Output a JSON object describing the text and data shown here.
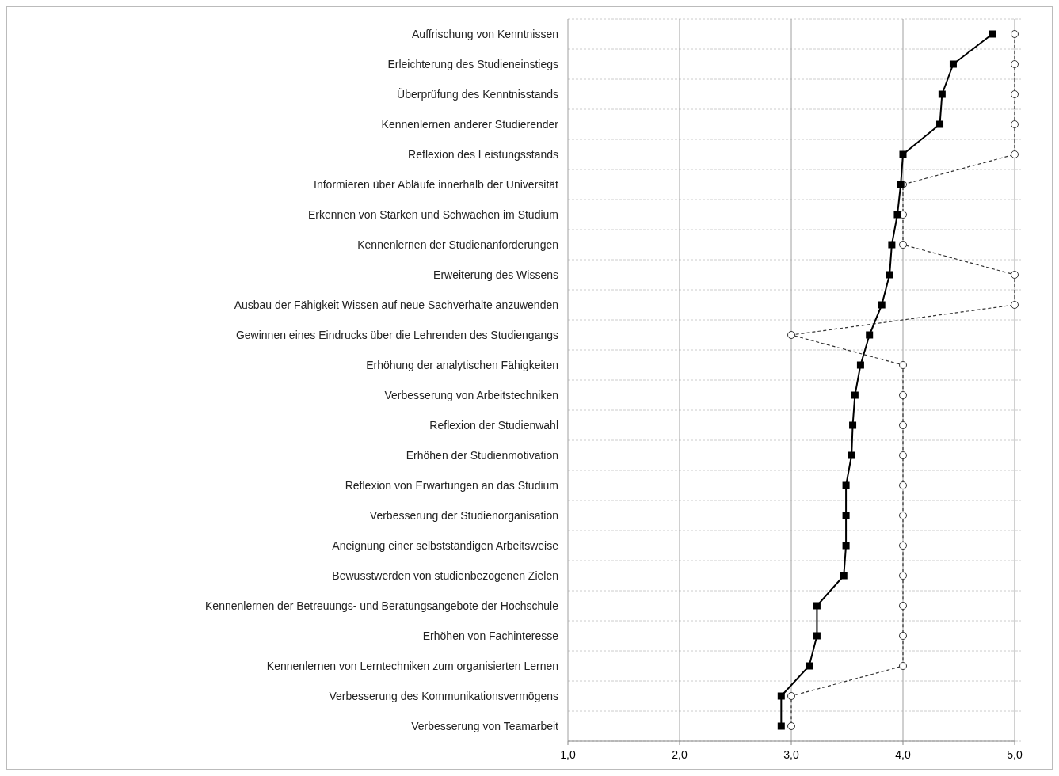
{
  "chart_data": {
    "type": "line",
    "orientation": "horizontal",
    "categories": [
      "Auffrischung von Kenntnissen",
      "Erleichterung des Studieneinstiegs",
      "Überprüfung des Kenntnisstands",
      "Kennenlernen anderer Studierender",
      "Reflexion des Leistungsstands",
      "Informieren über Abläufe innerhalb der Universität",
      "Erkennen von Stärken und Schwächen im Studium",
      "Kennenlernen der Studienanforderungen",
      "Erweiterung des Wissens",
      "Ausbau der Fähigkeit  Wissen auf neue Sachverhalte anzuwenden",
      "Gewinnen eines Eindrucks über die Lehrenden des Studiengangs",
      "Erhöhung der analytischen Fähigkeiten",
      "Verbesserung von Arbeitstechniken",
      "Reflexion der Studienwahl",
      "Erhöhen der Studienmotivation",
      "Reflexion von Erwartungen an das Studium",
      "Verbesserung der Studienorganisation",
      "Aneignung einer selbstständigen Arbeitsweise",
      "Bewusstwerden von studienbezogenen Zielen",
      "Kennenlernen der Betreuungs- und Beratungsangebote der Hochschule",
      "Erhöhen von Fachinteresse",
      "Kennenlernen von Lerntechniken zum organisierten Lernen",
      "Verbesserung des Kommunikationsvermögens",
      "Verbesserung von Teamarbeit"
    ],
    "series": [
      {
        "color": "#000000",
        "marker": "square",
        "line_style": "solid",
        "values": [
          4.8,
          4.45,
          4.35,
          4.33,
          4.0,
          3.98,
          3.95,
          3.9,
          3.88,
          3.81,
          3.7,
          3.62,
          3.57,
          3.55,
          3.54,
          3.49,
          3.49,
          3.49,
          3.47,
          3.23,
          3.23,
          3.16,
          2.91,
          2.91
        ]
      },
      {
        "color": "#333333",
        "marker": "circle",
        "line_style": "dashed",
        "values": [
          5,
          5,
          5,
          5,
          5,
          4,
          4,
          4,
          5,
          5,
          3,
          4,
          4,
          4,
          4,
          4,
          4,
          4,
          4,
          4,
          4,
          4,
          3,
          3
        ]
      }
    ],
    "xlim": [
      1,
      5
    ],
    "xticks": [
      {
        "value": 1,
        "label": "1,0"
      },
      {
        "value": 2,
        "label": "2,0"
      },
      {
        "value": 3,
        "label": "3,0"
      },
      {
        "value": 4,
        "label": "4,0"
      },
      {
        "value": 5,
        "label": "5,0"
      }
    ],
    "grid": true
  }
}
